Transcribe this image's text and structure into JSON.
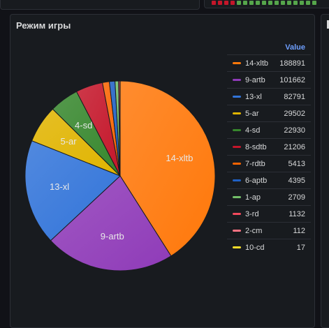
{
  "panel": {
    "title": "Режим игры"
  },
  "legend": {
    "value_header": "Value"
  },
  "status_strip": [
    "#c4162a",
    "#c4162a",
    "#c4162a",
    "#c4162a",
    "#56a64b",
    "#56a64b",
    "#56a64b",
    "#56a64b",
    "#56a64b",
    "#56a64b",
    "#56a64b",
    "#56a64b",
    "#56a64b",
    "#56a64b",
    "#56a64b",
    "#56a64b",
    "#56a64b"
  ],
  "chart_data": {
    "type": "pie",
    "title": "Режим игры",
    "slices": [
      {
        "label": "14-xltb",
        "value": 188891,
        "color": "#ff780a"
      },
      {
        "label": "9-artb",
        "value": 101662,
        "color": "#8f3bb8"
      },
      {
        "label": "13-xl",
        "value": 82791,
        "color": "#3274d9"
      },
      {
        "label": "5-ar",
        "value": 29502,
        "color": "#e0b400"
      },
      {
        "label": "4-sd",
        "value": 22930,
        "color": "#37872d"
      },
      {
        "label": "8-sdtb",
        "value": 21206,
        "color": "#c4162a"
      },
      {
        "label": "7-rdtb",
        "value": 5413,
        "color": "#fa6400"
      },
      {
        "label": "6-aptb",
        "value": 4395,
        "color": "#1f60c4"
      },
      {
        "label": "1-ap",
        "value": 2709,
        "color": "#73bf69"
      },
      {
        "label": "3-rd",
        "value": 1132,
        "color": "#f2495c"
      },
      {
        "label": "2-cm",
        "value": 112,
        "color": "#ff7383"
      },
      {
        "label": "10-cd",
        "value": 17,
        "color": "#fade2a"
      }
    ],
    "slice_labels_shown": [
      "14-xltb",
      "9-artb",
      "13-xl",
      "5-ar",
      "4-sd"
    ],
    "legend_position": "right"
  }
}
